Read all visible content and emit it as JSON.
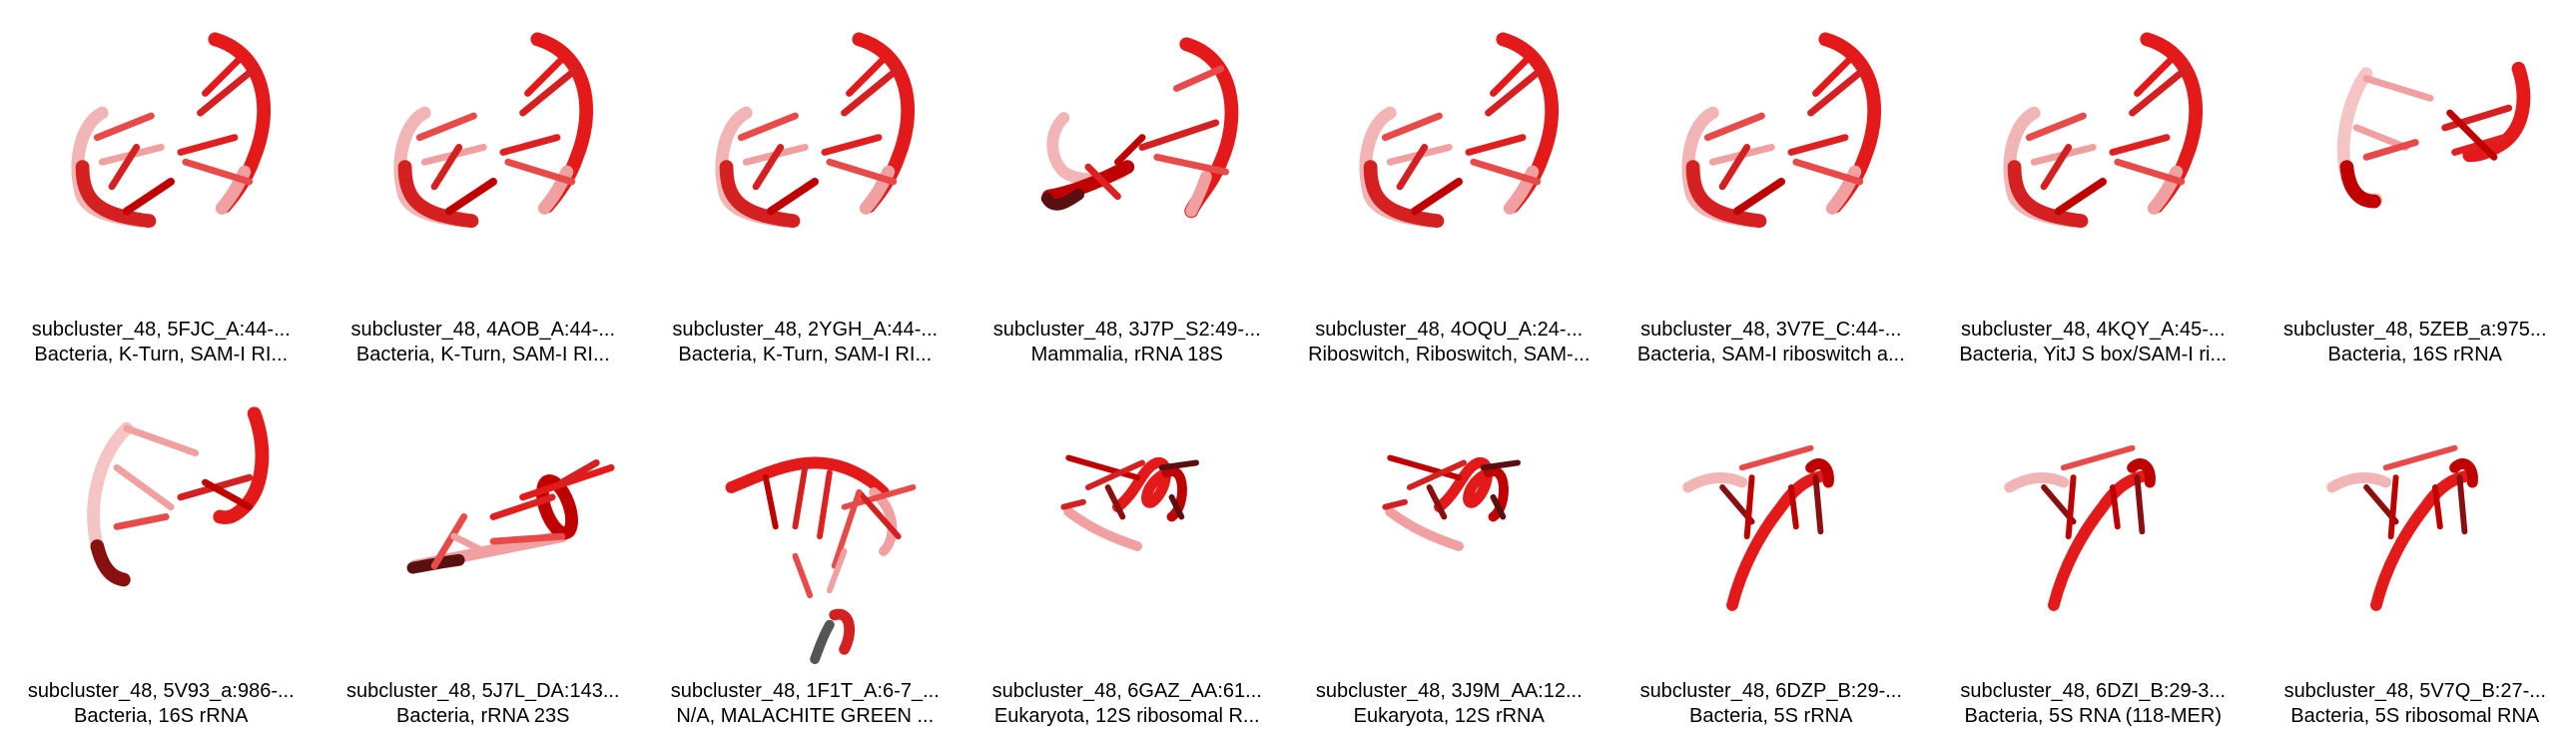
{
  "colors": {
    "strand_dark": "#c00000",
    "strand_mid": "#e41a1a",
    "strand_light": "#f0a0a0",
    "strand_pale": "#f8d0d0",
    "strand_shadow": "#5a1010",
    "gray_stub": "#555555"
  },
  "tiles": [
    {
      "name": "subcluster_48, 5FJC_A:44-...",
      "desc": "Bacteria, K-Turn, SAM-I RI...",
      "shape": "kturn"
    },
    {
      "name": "subcluster_48, 4AOB_A:44-...",
      "desc": "Bacteria, K-Turn, SAM-I RI...",
      "shape": "kturn"
    },
    {
      "name": "subcluster_48, 2YGH_A:44-...",
      "desc": "Bacteria, K-Turn, SAM-I RI...",
      "shape": "kturn"
    },
    {
      "name": "subcluster_48, 3J7P_S2:49-...",
      "desc": "Mammalia, rRNA 18S",
      "shape": "mammalia"
    },
    {
      "name": "subcluster_48, 4OQU_A:24-...",
      "desc": "Riboswitch, Riboswitch, SAM-...",
      "shape": "kturn"
    },
    {
      "name": "subcluster_48, 3V7E_C:44-...",
      "desc": "Bacteria, SAM-I riboswitch a...",
      "shape": "kturn"
    },
    {
      "name": "subcluster_48, 4KQY_A:45-...",
      "desc": "Bacteria, YitJ S box/SAM-I ri...",
      "shape": "kturn"
    },
    {
      "name": "subcluster_48, 5ZEB_a:975...",
      "desc": "Bacteria, 16S rRNA",
      "shape": "rrna16"
    },
    {
      "name": "subcluster_48, 5V93_a:986-...",
      "desc": "Bacteria, 16S rRNA",
      "shape": "rrna16b"
    },
    {
      "name": "subcluster_48, 5J7L_DA:143...",
      "desc": "Bacteria, rRNA 23S",
      "shape": "rrna23"
    },
    {
      "name": "subcluster_48, 1F1T_A:6-7_...",
      "desc": "N/A, MALACHITE GREEN ...",
      "shape": "malachite"
    },
    {
      "name": "subcluster_48, 6GAZ_AA:61...",
      "desc": "Eukaryota, 12S ribosomal R...",
      "shape": "helix12s"
    },
    {
      "name": "subcluster_48, 3J9M_AA:12...",
      "desc": "Eukaryota, 12S rRNA",
      "shape": "helix12s"
    },
    {
      "name": "subcluster_48, 6DZP_B:29-...",
      "desc": "Bacteria, 5S rRNA",
      "shape": "rrna5s"
    },
    {
      "name": "subcluster_48, 6DZI_B:29-3...",
      "desc": "Bacteria, 5S RNA (118-MER)",
      "shape": "rrna5s"
    },
    {
      "name": "subcluster_48, 5V7Q_B:27-...",
      "desc": "Bacteria, 5S ribosomal RNA",
      "shape": "rrna5s"
    }
  ]
}
